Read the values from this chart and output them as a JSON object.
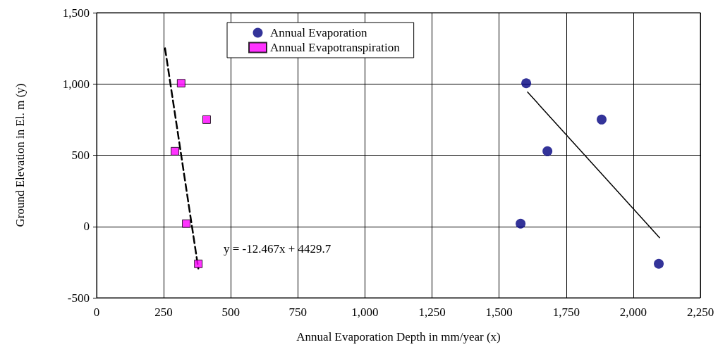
{
  "chart_data": {
    "type": "scatter",
    "xlabel": "Annual Evaporation Depth in mm/year (x)",
    "ylabel": "Ground Elevation in El. m (y)",
    "xlim": [
      0,
      2250
    ],
    "xticks": [
      {
        "value": 0,
        "label": "0"
      },
      {
        "value": 250,
        "label": "250"
      },
      {
        "value": 500,
        "label": "500"
      },
      {
        "value": 750,
        "label": "750"
      },
      {
        "value": 1000,
        "label": "1,000"
      },
      {
        "value": 1250,
        "label": "1,250"
      },
      {
        "value": 1500,
        "label": "1,500"
      },
      {
        "value": 1750,
        "label": "1,750"
      },
      {
        "value": 2000,
        "label": "2,000"
      },
      {
        "value": 2250,
        "label": "2,250"
      }
    ],
    "ylim": [
      -500,
      1500
    ],
    "yticks": [
      {
        "value": -500,
        "label": "-500"
      },
      {
        "value": 0,
        "label": "0"
      },
      {
        "value": 500,
        "label": "500"
      },
      {
        "value": 1000,
        "label": "1,000"
      },
      {
        "value": 1500,
        "label": "1,500"
      }
    ],
    "grid": true,
    "legend": "top",
    "series": [
      {
        "name": "Annual Evaporation",
        "color": "#000080",
        "marker": "circle",
        "x": [
          1601,
          1680,
          1882,
          1580,
          2095
        ],
        "values": [
          1005,
          528,
          750,
          20,
          -262
        ]
      },
      {
        "name": "Annual Evapotranspiration",
        "color": "#ff00ff",
        "marker": "square",
        "x": [
          315,
          410,
          292,
          334,
          379
        ],
        "values": [
          1005,
          750,
          528,
          20,
          -262
        ]
      },
      {
        "type": "line",
        "color": "#000000",
        "marker": "none",
        "line_style": "dashed",
        "x": [
          255,
          379
        ],
        "values": [
          1250,
          -295
        ]
      },
      {
        "type": "line",
        "color": "#000000",
        "marker": "none",
        "line_style": "solid",
        "x": [
          1606,
          2098
        ],
        "values": [
          943,
          -79
        ]
      }
    ],
    "annotations": [
      "y = -12.467x + 4429.7"
    ]
  }
}
